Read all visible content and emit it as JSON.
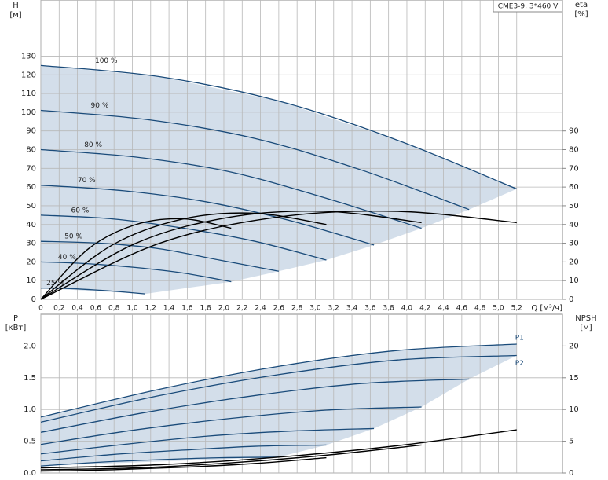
{
  "chart_data": [
    {
      "type": "line",
      "title": "CME3-9, 3*460 V",
      "ylabel": "H",
      "yunit": "[м]",
      "y2label": "eta",
      "y2unit": "[%]",
      "xlabel": "Q [м³/ч]",
      "xlim": [
        0,
        5.7
      ],
      "ylim": [
        0,
        160
      ],
      "y2lim": [
        0,
        160
      ],
      "grid": true,
      "xticks": [
        0,
        {
          "value": 0.2,
          "label": "0,2"
        },
        {
          "value": 0.4,
          "label": "0,4"
        },
        {
          "value": 0.6,
          "label": "0,6"
        },
        {
          "value": 0.8,
          "label": "0,8"
        },
        {
          "value": 1,
          "label": "1,0"
        },
        {
          "value": 1.2,
          "label": "1,2"
        },
        {
          "value": 1.4,
          "label": "1,4"
        },
        {
          "value": 1.6,
          "label": "1,6"
        },
        {
          "value": 1.8,
          "label": "1,8"
        },
        {
          "value": 2,
          "label": "2,0"
        },
        {
          "value": 2.2,
          "label": "2,2"
        },
        {
          "value": 2.4,
          "label": "2,4"
        },
        {
          "value": 2.6,
          "label": "2,6"
        },
        {
          "value": 2.8,
          "label": "2,8"
        },
        {
          "value": 3,
          "label": "3,0"
        },
        {
          "value": 3.2,
          "label": "3,2"
        },
        {
          "value": 3.4,
          "label": "3,4"
        },
        {
          "value": 3.6,
          "label": "3,6"
        },
        {
          "value": 3.8,
          "label": "3,8"
        },
        {
          "value": 4,
          "label": "4,0"
        },
        {
          "value": 4.2,
          "label": "4,2"
        },
        {
          "value": 4.4,
          "label": "4,4"
        },
        {
          "value": 4.6,
          "label": "4,6"
        },
        {
          "value": 4.8,
          "label": "4,8"
        },
        {
          "value": 5,
          "label": "5,0"
        },
        {
          "value": 5.2,
          "label": "5,2"
        }
      ],
      "yticks": [
        0,
        10,
        20,
        30,
        40,
        50,
        60,
        70,
        80,
        90,
        100,
        110,
        120,
        130
      ],
      "y2ticks": [
        0,
        10,
        20,
        30,
        40,
        50,
        60,
        70,
        80,
        90
      ],
      "shade_color": "#cbd8e6",
      "series": [
        {
          "name": "100 %",
          "color": "#1a4b7a",
          "x": [
            0,
            1.3,
            2.6,
            3.9,
            5.2
          ],
          "values": [
            125,
            119,
            106,
            85,
            59
          ]
        },
        {
          "name": "90 %",
          "color": "#1a4b7a",
          "x": [
            0,
            1.17,
            2.34,
            3.51,
            4.68
          ],
          "values": [
            101,
            96,
            86,
            69,
            48
          ]
        },
        {
          "name": "80 %",
          "color": "#1a4b7a",
          "x": [
            0,
            1.04,
            2.08,
            3.12,
            4.16
          ],
          "values": [
            80,
            76,
            68,
            54,
            38
          ]
        },
        {
          "name": "70 %",
          "color": "#1a4b7a",
          "x": [
            0,
            0.91,
            1.82,
            2.73,
            3.64
          ],
          "values": [
            61,
            58,
            52,
            42,
            29
          ]
        },
        {
          "name": "60 %",
          "color": "#1a4b7a",
          "x": [
            0,
            0.78,
            1.56,
            2.34,
            3.12
          ],
          "values": [
            45,
            43,
            38,
            31,
            21
          ]
        },
        {
          "name": "50 %",
          "color": "#1a4b7a",
          "x": [
            0,
            0.65,
            1.3,
            1.95,
            2.6
          ],
          "values": [
            31,
            30,
            27,
            21,
            15
          ]
        },
        {
          "name": "40 %",
          "color": "#1a4b7a",
          "x": [
            0,
            0.52,
            1.04,
            1.56,
            2.08
          ],
          "values": [
            20,
            19,
            17,
            14,
            9.4
          ]
        },
        {
          "name": "25 %",
          "color": "#1a4b7a",
          "x": [
            0,
            0.29,
            0.57,
            0.86,
            1.14
          ],
          "values": [
            6,
            5.8,
            5.1,
            4.1,
            2.9
          ]
        },
        {
          "color": "#000000",
          "axis": "y2",
          "x": [
            0,
            1.3,
            2.6,
            3.9,
            5.2
          ],
          "values": [
            0,
            30,
            44,
            47,
            41
          ]
        },
        {
          "color": "#000000",
          "axis": "y2",
          "x": [
            0,
            1.04,
            2.08,
            3.12,
            4.16
          ],
          "values": [
            0,
            30,
            44,
            47,
            41
          ]
        },
        {
          "color": "#000000",
          "axis": "y2",
          "x": [
            0,
            0.78,
            1.56,
            2.34,
            3.12
          ],
          "values": [
            0,
            29,
            43,
            46,
            40
          ]
        },
        {
          "color": "#000000",
          "axis": "y2",
          "x": [
            0,
            0.52,
            1.04,
            1.56,
            2.08
          ],
          "values": [
            0,
            27,
            40,
            43,
            38
          ]
        }
      ]
    },
    {
      "type": "line",
      "ylabel": "P",
      "yunit": "[кВт]",
      "y2label": "NPSH",
      "y2unit": "[м]",
      "xlim": [
        0,
        5.7
      ],
      "ylim": [
        0,
        2.5
      ],
      "y2lim": [
        0,
        25
      ],
      "grid": true,
      "xticks": [
        0,
        0.2,
        0.4,
        0.6,
        0.8,
        1,
        1.2,
        1.4,
        1.6,
        1.8,
        2,
        2.2,
        2.4,
        2.6,
        2.8,
        3,
        3.2,
        3.4,
        3.6,
        3.8,
        4,
        4.2,
        4.4,
        4.6,
        4.8,
        5,
        5.2
      ],
      "yticks": [
        {
          "value": 0,
          "label": "0.0"
        },
        0.5,
        {
          "value": 1,
          "label": "1.0"
        },
        1.5,
        {
          "value": 2,
          "label": "2.0"
        }
      ],
      "y2ticks": [
        0,
        5,
        10,
        15,
        20
      ],
      "shade_color": "#cbd8e6",
      "series": [
        {
          "name": "P1",
          "color": "#1a4b7a",
          "x": [
            0,
            1.3,
            2.6,
            3.9,
            5.2
          ],
          "values": [
            0.88,
            1.32,
            1.68,
            1.93,
            2.03
          ]
        },
        {
          "name": "P2",
          "color": "#1a4b7a",
          "x": [
            0,
            1.3,
            2.6,
            3.9,
            5.2
          ],
          "values": [
            0.8,
            1.22,
            1.55,
            1.78,
            1.85
          ]
        },
        {
          "color": "#1a4b7a",
          "x": [
            0,
            1.17,
            2.34,
            3.51,
            4.68
          ],
          "values": [
            0.64,
            0.96,
            1.22,
            1.41,
            1.48
          ]
        },
        {
          "color": "#1a4b7a",
          "x": [
            0,
            1.04,
            2.08,
            3.12,
            4.16
          ],
          "values": [
            0.45,
            0.68,
            0.86,
            0.99,
            1.04
          ]
        },
        {
          "color": "#1a4b7a",
          "x": [
            0,
            0.91,
            1.82,
            2.73,
            3.64
          ],
          "values": [
            0.3,
            0.45,
            0.58,
            0.66,
            0.7
          ]
        },
        {
          "color": "#1a4b7a",
          "x": [
            0,
            0.78,
            1.56,
            2.34,
            3.12
          ],
          "values": [
            0.19,
            0.29,
            0.36,
            0.42,
            0.44
          ]
        },
        {
          "color": "#1a4b7a",
          "x": [
            0,
            0.65,
            1.3,
            1.95,
            2.6
          ],
          "values": [
            0.11,
            0.17,
            0.21,
            0.24,
            0.25
          ]
        },
        {
          "color": "#000000",
          "axis": "y2",
          "x": [
            0,
            1.3,
            2.6,
            3.9,
            5.2
          ],
          "values": [
            0.8,
            1.3,
            2.5,
            4.3,
            6.8
          ]
        },
        {
          "color": "#000000",
          "axis": "y2",
          "x": [
            0,
            1.04,
            2.08,
            3.12,
            4.16
          ],
          "values": [
            0.5,
            0.8,
            1.6,
            2.8,
            4.4
          ]
        },
        {
          "color": "#000000",
          "axis": "y2",
          "x": [
            0,
            0.78,
            1.56,
            2.34,
            3.12
          ],
          "values": [
            0.3,
            0.5,
            0.9,
            1.5,
            2.4
          ]
        }
      ]
    }
  ]
}
